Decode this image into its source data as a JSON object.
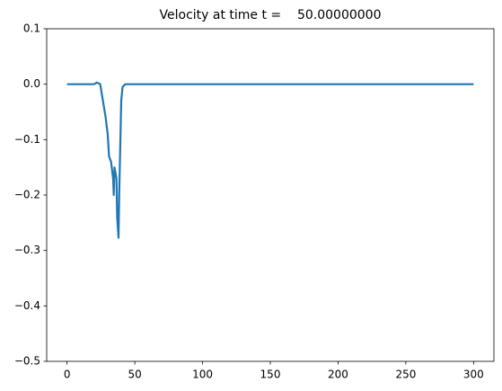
{
  "chart_data": {
    "type": "line",
    "title": "Velocity at time t =    50.00000000",
    "x": [
      0,
      5,
      10,
      15,
      20,
      22,
      24.5,
      26.5,
      28.5,
      30,
      31,
      32.5,
      34,
      34.5,
      35,
      36.5,
      37,
      38,
      38.5,
      40,
      41,
      43,
      50,
      100,
      150,
      200,
      250,
      300
    ],
    "values": [
      0,
      0,
      0,
      0,
      0,
      0.003,
      0,
      -0.03,
      -0.06,
      -0.09,
      -0.13,
      -0.14,
      -0.17,
      -0.2,
      -0.15,
      -0.17,
      -0.24,
      -0.277,
      -0.2,
      -0.03,
      -0.005,
      0,
      0,
      0,
      0,
      0,
      0,
      0
    ],
    "color": "#1f77b4",
    "xlim": [
      -15,
      315
    ],
    "xticks": [
      0,
      50,
      100,
      150,
      200,
      250,
      300
    ],
    "ylim": [
      -0.5,
      0.1
    ],
    "yticks": [
      {
        "value": -0.5,
        "label": "−0.5"
      },
      {
        "value": -0.4,
        "label": "−0.4"
      },
      {
        "value": -0.3,
        "label": "−0.3"
      },
      {
        "value": -0.2,
        "label": "−0.2"
      },
      {
        "value": -0.1,
        "label": "−0.1"
      },
      {
        "value": 0,
        "label": "0.0"
      },
      0.1
    ]
  }
}
